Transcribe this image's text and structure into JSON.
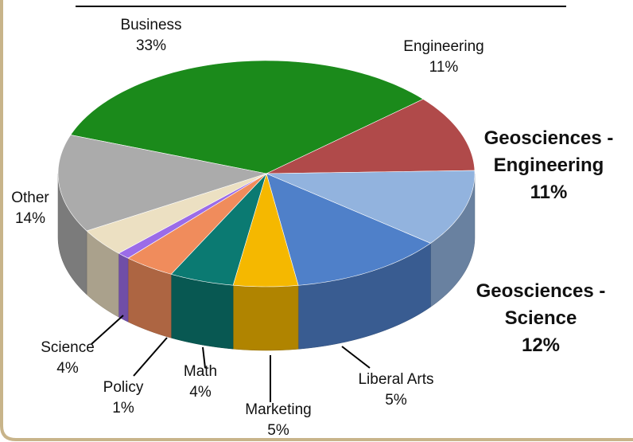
{
  "chart_data": {
    "type": "pie",
    "categories": [
      "Business",
      "Engineering",
      "Geosciences - Engineering",
      "Geosciences - Science",
      "Liberal Arts",
      "Marketing",
      "Math",
      "Policy",
      "Science",
      "Other"
    ],
    "values": [
      33,
      11,
      11,
      12,
      5,
      5,
      4,
      1,
      4,
      14
    ],
    "value_labels": [
      "33%",
      "11%",
      "11%",
      "12%",
      "5%",
      "5%",
      "4%",
      "1%",
      "4%",
      "14%"
    ],
    "colors": [
      "#1b8a1b",
      "#b04a4a",
      "#92b3de",
      "#4f80c9",
      "#f5b800",
      "#0b7a72",
      "#f08c5c",
      "#9b6ce8",
      "#ece0c2",
      "#ababab"
    ]
  }
}
